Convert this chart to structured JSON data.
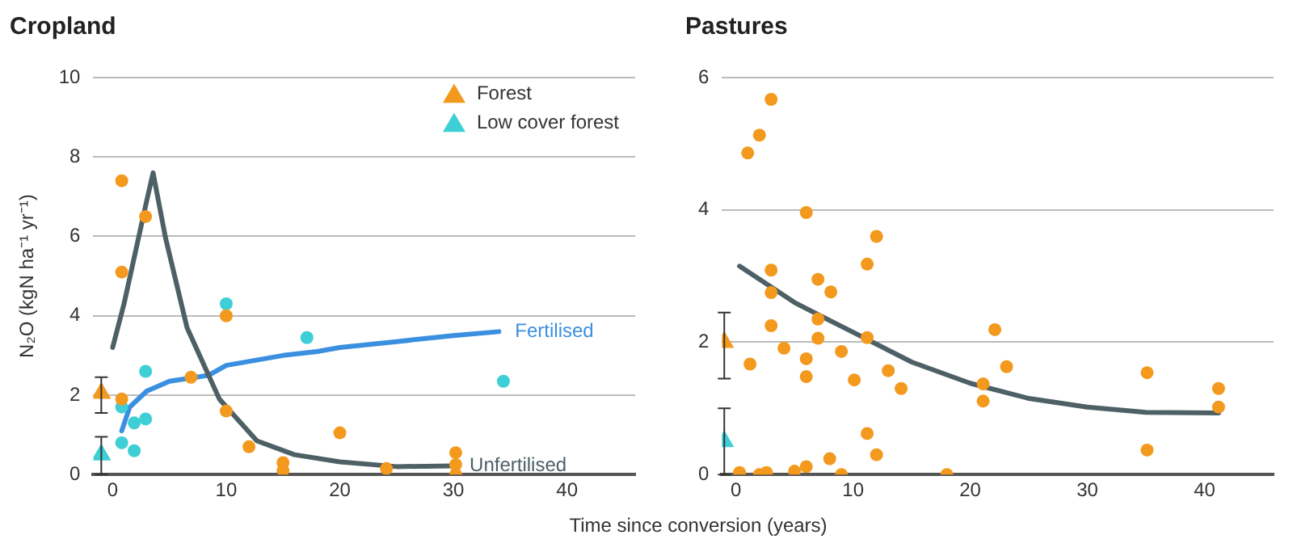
{
  "chart_data": [
    {
      "type": "scatter",
      "title": "Cropland",
      "xlabel": "Time since conversion (years)",
      "ylabel": "N₂O (kgN ha⁻¹ yr⁻¹)",
      "xlim": [
        -1.7,
        46
      ],
      "xticks": [
        0,
        10,
        20,
        30,
        40
      ],
      "ylim": [
        0,
        10
      ],
      "yticks": [
        0,
        2,
        4,
        6,
        8,
        10
      ],
      "grid": "y",
      "legend": "top right",
      "series": [
        {
          "name": "Forest",
          "type": "scatter",
          "marker": "triangle",
          "color": "#f39a1e",
          "x": [
            -1
          ],
          "values": [
            2.05
          ],
          "errors": [
            [
              1.55,
              2.45
            ]
          ]
        },
        {
          "name": "Low cover forest",
          "type": "scatter",
          "marker": "triangle",
          "color": "#3ecfd6",
          "x": [
            -1
          ],
          "values": [
            0.5
          ],
          "errors": [
            [
              0,
              0.95
            ]
          ]
        },
        {
          "type": "scatter",
          "marker": "circle",
          "color": "#f39a1e",
          "x": [
            0.8,
            0.8,
            2.9,
            0.8,
            6.9,
            10,
            10,
            12,
            15,
            15,
            20,
            24.1,
            30.2,
            30.2,
            30.2
          ],
          "values": [
            7.4,
            5.1,
            6.5,
            1.9,
            2.45,
            4.0,
            1.6,
            0.7,
            0.3,
            0.1,
            1.05,
            0.15,
            0.55,
            0.25,
            0
          ]
        },
        {
          "type": "scatter",
          "marker": "circle",
          "color": "#3ecfd6",
          "x": [
            10,
            17.1,
            34.4,
            0.8,
            2.9,
            1.9,
            2.9,
            0.8,
            1.9
          ],
          "values": [
            4.3,
            3.45,
            2.35,
            1.7,
            2.6,
            1.3,
            1.4,
            0.8,
            0.6
          ]
        },
        {
          "name": "Unfertilised",
          "type": "line",
          "marker": "none",
          "color": "#4d6066",
          "x": [
            0,
            1,
            2,
            3,
            3.56,
            4.65,
            6.55,
            9.4,
            12.7,
            16,
            20,
            25,
            30
          ],
          "values": [
            3.2,
            4.3,
            5.6,
            6.9,
            7.6,
            5.97,
            3.7,
            1.9,
            0.85,
            0.5,
            0.32,
            0.2,
            0.22
          ]
        },
        {
          "name": "Fertilised",
          "type": "line",
          "marker": "none",
          "color": "#3b8fe0",
          "x": [
            0.8,
            1.5,
            3,
            5,
            8.45,
            10,
            15,
            18,
            20,
            25,
            30,
            34
          ],
          "values": [
            1.1,
            1.7,
            2.1,
            2.35,
            2.5,
            2.75,
            3.0,
            3.1,
            3.2,
            3.35,
            3.5,
            3.6
          ]
        }
      ]
    },
    {
      "type": "scatter",
      "title": "Pastures",
      "xlim": [
        -1.2,
        45.9
      ],
      "xticks": [
        0,
        10,
        20,
        30,
        40
      ],
      "ylim": [
        0,
        6
      ],
      "yticks": [
        0,
        2,
        4,
        6
      ],
      "grid": "y",
      "series": [
        {
          "type": "scatter",
          "marker": "triangle",
          "color": "#f39a1e",
          "x": [
            -1
          ],
          "values": [
            2.0
          ],
          "errors": [
            [
              1.45,
              2.45
            ]
          ]
        },
        {
          "type": "scatter",
          "marker": "triangle",
          "color": "#3ecfd6",
          "x": [
            -1
          ],
          "values": [
            0.5
          ],
          "errors": [
            [
              0,
              1.0
            ]
          ]
        },
        {
          "type": "scatter",
          "marker": "circle",
          "color": "#f39a1e",
          "x": [
            1.0,
            2.0,
            3.0,
            6.0,
            12.0,
            11.2,
            3.0,
            3.0,
            7.0,
            8.1,
            7.0,
            3.0,
            7.0,
            11.2,
            4.1,
            9.0,
            6.0,
            1.2,
            6.0,
            10.1,
            13.0,
            14.1,
            22.1,
            23.1,
            21.1,
            21.1,
            35.1,
            35.1,
            41.2,
            41.2,
            11.2,
            12.0,
            8.0,
            6.0,
            5.0,
            2.6,
            2.0,
            0.3,
            9.0,
            18.0
          ],
          "values": [
            4.86,
            5.13,
            5.67,
            3.96,
            3.6,
            3.18,
            3.09,
            2.75,
            2.95,
            2.76,
            2.35,
            2.25,
            2.06,
            2.07,
            1.91,
            1.86,
            1.75,
            1.67,
            1.48,
            1.43,
            1.57,
            1.3,
            2.19,
            1.63,
            1.37,
            1.11,
            1.54,
            0.37,
            1.3,
            1.02,
            0.62,
            0.3,
            0.24,
            0.12,
            0.05,
            0.03,
            0,
            0.03,
            0,
            0
          ]
        },
        {
          "type": "line",
          "marker": "none",
          "color": "#4d6066",
          "x": [
            0.3,
            5,
            10,
            15,
            20,
            25,
            30,
            35,
            41.2
          ],
          "values": [
            3.15,
            2.6,
            2.15,
            1.7,
            1.38,
            1.15,
            1.02,
            0.94,
            0.93
          ]
        }
      ]
    }
  ]
}
